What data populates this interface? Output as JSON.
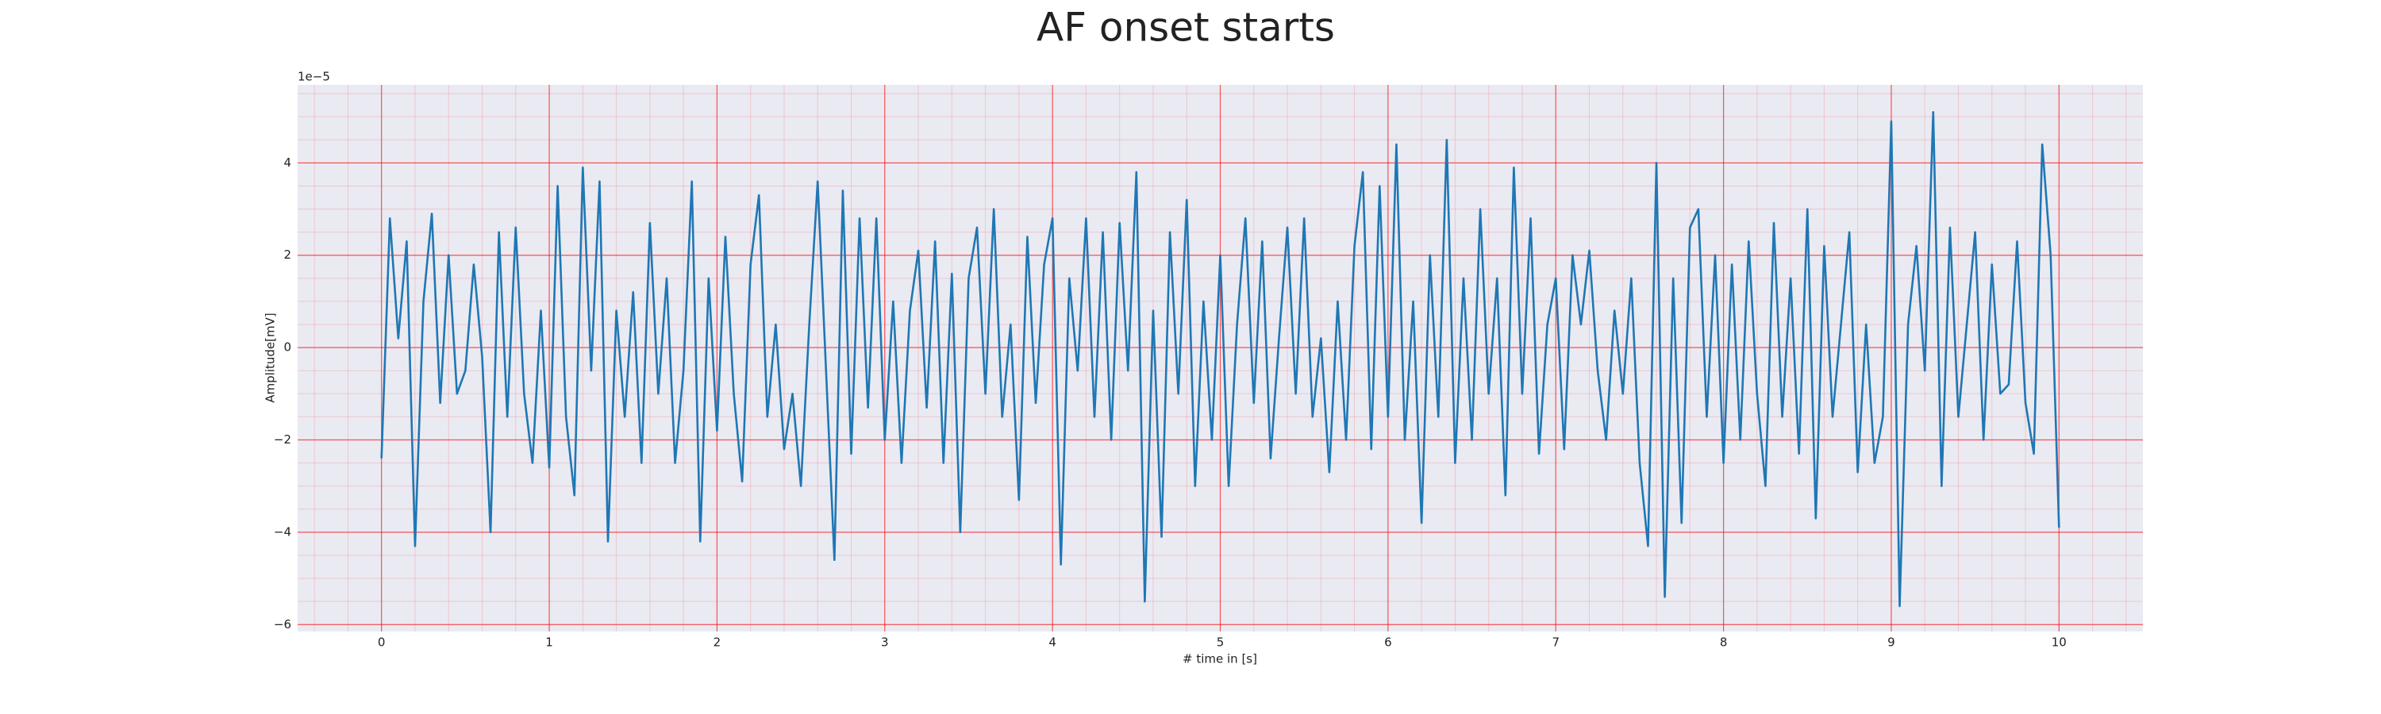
{
  "chart_data": {
    "type": "line",
    "title": "AF onset starts",
    "xlabel": "# time in [s]",
    "ylabel": "Amplitude[mV]",
    "y_offset_label": "1e−5",
    "x": [
      0,
      0.05,
      0.1,
      0.15,
      0.2,
      0.25,
      0.3,
      0.35,
      0.4,
      0.45,
      0.5,
      0.55,
      0.6,
      0.65,
      0.7,
      0.75,
      0.8,
      0.85,
      0.9,
      0.95,
      1,
      1.05,
      1.1,
      1.15,
      1.2,
      1.25,
      1.3,
      1.35,
      1.4,
      1.45,
      1.5,
      1.55,
      1.6,
      1.65,
      1.7,
      1.75,
      1.8,
      1.85,
      1.9,
      1.95,
      2,
      2.05,
      2.1,
      2.15,
      2.2,
      2.25,
      2.3,
      2.35,
      2.4,
      2.45,
      2.5,
      2.55,
      2.6,
      2.65,
      2.7,
      2.75,
      2.8,
      2.85,
      2.9,
      2.95,
      3,
      3.05,
      3.1,
      3.15,
      3.2,
      3.25,
      3.3,
      3.35,
      3.4,
      3.45,
      3.5,
      3.55,
      3.6,
      3.65,
      3.7,
      3.75,
      3.8,
      3.85,
      3.9,
      3.95,
      4,
      4.05,
      4.1,
      4.15,
      4.2,
      4.25,
      4.3,
      4.35,
      4.4,
      4.45,
      4.5,
      4.55,
      4.6,
      4.65,
      4.7,
      4.75,
      4.8,
      4.85,
      4.9,
      4.95,
      5,
      5.05,
      5.1,
      5.15,
      5.2,
      5.25,
      5.3,
      5.35,
      5.4,
      5.45,
      5.5,
      5.55,
      5.6,
      5.65,
      5.7,
      5.75,
      5.8,
      5.85,
      5.9,
      5.95,
      6,
      6.05,
      6.1,
      6.15,
      6.2,
      6.25,
      6.3,
      6.35,
      6.4,
      6.45,
      6.5,
      6.55,
      6.6,
      6.65,
      6.7,
      6.75,
      6.8,
      6.85,
      6.9,
      6.95,
      7,
      7.05,
      7.1,
      7.15,
      7.2,
      7.25,
      7.3,
      7.35,
      7.4,
      7.45,
      7.5,
      7.55,
      7.6,
      7.65,
      7.7,
      7.75,
      7.8,
      7.85,
      7.9,
      7.95,
      8,
      8.05,
      8.1,
      8.15,
      8.2,
      8.25,
      8.3,
      8.35,
      8.4,
      8.45,
      8.5,
      8.55,
      8.6,
      8.65,
      8.7,
      8.75,
      8.8,
      8.85,
      8.9,
      8.95,
      9,
      9.05,
      9.1,
      9.15,
      9.2,
      9.25,
      9.3,
      9.35,
      9.4,
      9.45,
      9.5,
      9.55,
      9.6,
      9.65,
      9.7,
      9.75,
      9.8,
      9.85,
      9.9,
      9.95,
      10
    ],
    "series": [
      {
        "color": "#1f77b4",
        "values": [
          -2.4,
          2.8,
          0.2,
          2.3,
          -4.3,
          1.0,
          2.9,
          -1.2,
          2.0,
          -1.0,
          -0.5,
          1.8,
          -0.2,
          -4.0,
          2.5,
          -1.5,
          2.6,
          -1.0,
          -2.5,
          0.8,
          -2.6,
          3.5,
          -1.5,
          -3.2,
          3.9,
          -0.5,
          3.6,
          -4.2,
          0.8,
          -1.5,
          1.2,
          -2.5,
          2.7,
          -1.0,
          1.5,
          -2.5,
          -0.5,
          3.6,
          -4.2,
          1.5,
          -1.8,
          2.4,
          -1.0,
          -2.9,
          1.8,
          3.3,
          -1.5,
          0.5,
          -2.2,
          -1.0,
          -3.0,
          0.5,
          3.6,
          -0.5,
          -4.6,
          3.4,
          -2.3,
          2.8,
          -1.3,
          2.8,
          -2.0,
          1.0,
          -2.5,
          0.8,
          2.1,
          -1.3,
          2.3,
          -2.5,
          1.6,
          -4.0,
          1.5,
          2.6,
          -1.0,
          3.0,
          -1.5,
          0.5,
          -3.3,
          2.4,
          -1.2,
          1.8,
          2.8,
          -4.7,
          1.5,
          -0.5,
          2.8,
          -1.5,
          2.5,
          -2.0,
          2.7,
          -0.5,
          3.8,
          -5.5,
          0.8,
          -4.1,
          2.5,
          -1.0,
          3.2,
          -3.0,
          1.0,
          -2.0,
          2.0,
          -3.0,
          0.5,
          2.8,
          -1.2,
          2.3,
          -2.4,
          0.2,
          2.6,
          -1.0,
          2.8,
          -1.5,
          0.2,
          -2.7,
          1.0,
          -2.0,
          2.2,
          3.8,
          -2.2,
          3.5,
          -1.5,
          4.4,
          -2.0,
          1.0,
          -3.8,
          2.0,
          -1.5,
          4.5,
          -2.5,
          1.5,
          -2.0,
          3.0,
          -1.0,
          1.5,
          -3.2,
          3.9,
          -1.0,
          2.8,
          -2.3,
          0.5,
          1.5,
          -2.2,
          2.0,
          0.5,
          2.1,
          -0.5,
          -2.0,
          0.8,
          -1.0,
          1.5,
          -2.5,
          -4.3,
          4.0,
          -5.4,
          1.5,
          -3.8,
          2.6,
          3.0,
          -1.5,
          2.0,
          -2.5,
          1.8,
          -2.0,
          2.3,
          -1.0,
          -3.0,
          2.7,
          -1.5,
          1.5,
          -2.3,
          3.0,
          -3.7,
          2.2,
          -1.5,
          0.5,
          2.5,
          -2.7,
          0.5,
          -2.5,
          -1.5,
          4.9,
          -5.6,
          0.5,
          2.2,
          -0.5,
          5.1,
          -3.0,
          2.6,
          -1.5,
          0.5,
          2.5,
          -2.0,
          1.8,
          -1.0,
          -0.8,
          2.3,
          -1.2,
          -2.3,
          4.4,
          2.0,
          -3.9
        ]
      }
    ],
    "xlim": [
      -0.5,
      10.5
    ],
    "xticks": [
      0,
      1,
      2,
      3,
      4,
      5,
      6,
      7,
      8,
      9,
      10
    ],
    "ylim": [
      -6.15,
      5.69
    ],
    "yticks": [
      {
        "value": -6,
        "label": "−6"
      },
      {
        "value": -4,
        "label": "−4"
      },
      {
        "value": -2,
        "label": "−2"
      },
      0,
      2,
      4
    ],
    "grid": true,
    "grid_color": "#ff0000",
    "background": "#eaeaf2"
  }
}
